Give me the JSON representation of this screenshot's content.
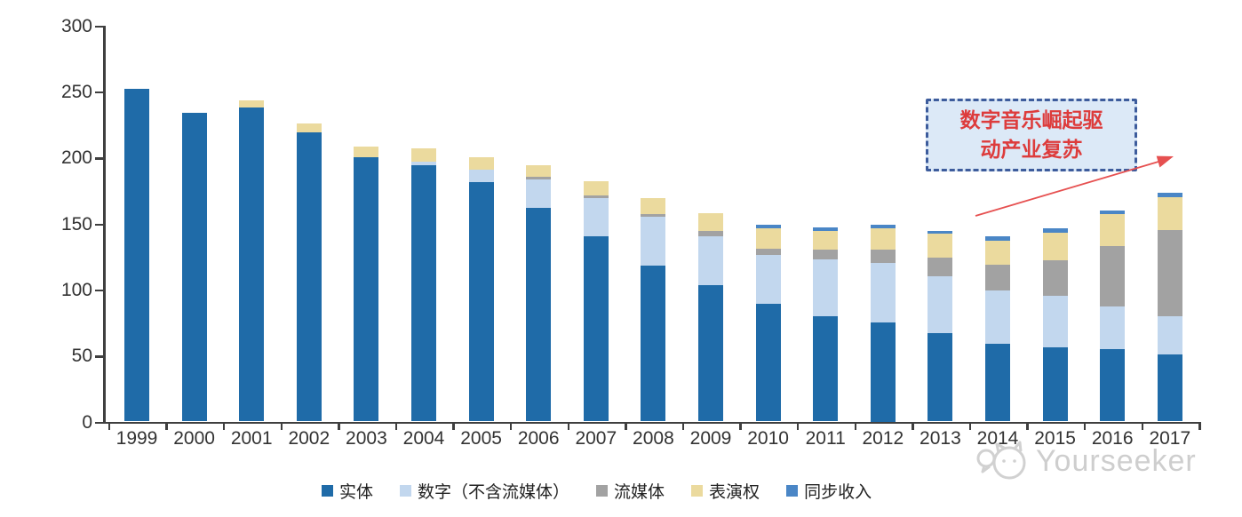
{
  "chart_data": {
    "type": "bar",
    "stacked": true,
    "title": "",
    "xlabel": "",
    "ylabel": "",
    "ylim": [
      0,
      300
    ],
    "yticks": [
      0,
      50,
      100,
      150,
      200,
      250,
      300
    ],
    "grid": false,
    "legend_position": "bottom",
    "categories": [
      "1999",
      "2000",
      "2001",
      "2002",
      "2003",
      "2004",
      "2005",
      "2006",
      "2007",
      "2008",
      "2009",
      "2010",
      "2011",
      "2012",
      "2013",
      "2014",
      "2015",
      "2016",
      "2017"
    ],
    "series": [
      {
        "name": "实体",
        "color": "#1f6ba8",
        "values": [
          252,
          234,
          238,
          219,
          200,
          194,
          181,
          162,
          140,
          118,
          103,
          89,
          80,
          75,
          67,
          59,
          56,
          55,
          51
        ]
      },
      {
        "name": "数字（不含流媒体）",
        "color": "#c2d7ee",
        "values": [
          0,
          0,
          0,
          0,
          0,
          3,
          10,
          21,
          29,
          37,
          37,
          37,
          43,
          45,
          43,
          40,
          39,
          32,
          29
        ]
      },
      {
        "name": "流媒体",
        "color": "#a2a2a2",
        "values": [
          0,
          0,
          0,
          0,
          0,
          0,
          0,
          2,
          2,
          2,
          4,
          5,
          7,
          10,
          14,
          20,
          27,
          46,
          65
        ]
      },
      {
        "name": "表演权",
        "color": "#ebda9e",
        "values": [
          0,
          0,
          5,
          7,
          8,
          10,
          9,
          9,
          11,
          12,
          14,
          15,
          14,
          16,
          18,
          18,
          21,
          24,
          25
        ]
      },
      {
        "name": "同步收入",
        "color": "#4a86c6",
        "values": [
          0,
          0,
          0,
          0,
          0,
          0,
          0,
          0,
          0,
          0,
          0,
          3,
          3,
          3,
          2,
          3,
          3,
          3,
          3
        ]
      }
    ]
  },
  "annotation": {
    "line1": "数字音乐崛起驱",
    "line2": "动产业复苏",
    "text_color": "#dd3c3c",
    "border_color": "#3d5c9c",
    "fill_color": "#dce9f7",
    "arrow_color": "#e65050"
  },
  "axis": {
    "color": "#3f3f3f",
    "label_color": "#333333"
  },
  "watermark": {
    "text": "Yourseeker",
    "color": "#c6c6c6",
    "logo": "cat-chat-logo"
  }
}
